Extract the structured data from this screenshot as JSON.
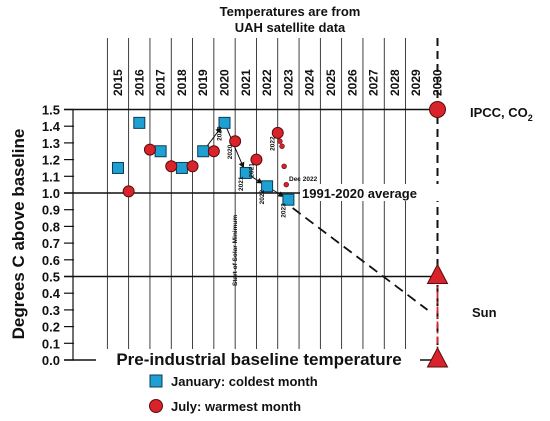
{
  "title_line1": "Temperatures are from",
  "title_line2": "UAH satellite data",
  "ylabel": "Degrees C above baseline",
  "baseline_label": "Pre-industrial baseline temperature",
  "average_label": "1991-2020 average",
  "ipcc_label": "IPCC, CO",
  "ipcc_subscript": "2",
  "sun_label": "Sun",
  "solar_min_label": "Start of Solar Minimum",
  "dec_label": "Dec 2022",
  "legend": {
    "january": "January: coldest month",
    "july": "July: warmest month"
  },
  "colors": {
    "january": "#1ea0d2",
    "july": "#d8232a",
    "sun_line": "#d8232a",
    "lines": "#111111"
  },
  "chart_data": {
    "type": "scatter",
    "x_ticks": [
      "2015",
      "2016",
      "2017",
      "2018",
      "2019",
      "2020",
      "2021",
      "2022",
      "2023",
      "2024",
      "2025",
      "2026",
      "2027",
      "2028",
      "2029",
      "2030"
    ],
    "y_ticks": [
      "0.0",
      "0.1",
      "0.2",
      "0.3",
      "0.4",
      "0.5",
      "0.6",
      "0.7",
      "0.8",
      "0.9",
      "1.0",
      "1.1",
      "1.2",
      "1.3",
      "1.4",
      "1.5"
    ],
    "ylim": [
      0,
      1.5
    ],
    "xlim": [
      2014.5,
      2030.5
    ],
    "series": [
      {
        "name": "January: coldest month",
        "marker": "square",
        "points": [
          {
            "x": 2015.0,
            "y": 1.15
          },
          {
            "x": 2016.0,
            "y": 1.42
          },
          {
            "x": 2017.0,
            "y": 1.25
          },
          {
            "x": 2018.0,
            "y": 1.15
          },
          {
            "x": 2019.0,
            "y": 1.25
          },
          {
            "x": 2020.0,
            "y": 1.42
          },
          {
            "x": 2021.0,
            "y": 1.12
          },
          {
            "x": 2022.0,
            "y": 1.04
          },
          {
            "x": 2023.0,
            "y": 0.96
          }
        ]
      },
      {
        "name": "July: warmest month",
        "marker": "circle",
        "points": [
          {
            "x": 2015.5,
            "y": 1.01
          },
          {
            "x": 2016.5,
            "y": 1.26
          },
          {
            "x": 2017.5,
            "y": 1.16
          },
          {
            "x": 2018.5,
            "y": 1.16
          },
          {
            "x": 2019.5,
            "y": 1.25
          },
          {
            "x": 2020.5,
            "y": 1.31
          },
          {
            "x": 2021.5,
            "y": 1.2
          },
          {
            "x": 2022.5,
            "y": 1.36
          }
        ]
      },
      {
        "marker": "small-circle",
        "points": [
          {
            "x": 2022.6,
            "y": 1.31
          },
          {
            "x": 2022.7,
            "y": 1.28
          },
          {
            "x": 2022.8,
            "y": 1.16
          },
          {
            "x": 2022.9,
            "y": 1.05
          }
        ]
      }
    ],
    "trend_arrows": [
      {
        "from": {
          "x": 2019.0,
          "y": 1.25
        },
        "to": {
          "x": 2020.0,
          "y": 1.42
        }
      },
      {
        "from": {
          "x": 2020.0,
          "y": 1.42
        },
        "to": {
          "x": 2021.0,
          "y": 1.12
        }
      },
      {
        "from": {
          "x": 2021.0,
          "y": 1.12
        },
        "to": {
          "x": 2022.0,
          "y": 1.04
        }
      },
      {
        "from": {
          "x": 2022.0,
          "y": 1.04
        },
        "to": {
          "x": 2023.0,
          "y": 0.96
        }
      }
    ],
    "point_labels": [
      {
        "text": "2020",
        "x": 2020.0,
        "y": 1.42
      },
      {
        "text": "2020",
        "x": 2020.5,
        "y": 1.31
      },
      {
        "text": "2021",
        "x": 2021.0,
        "y": 1.12
      },
      {
        "text": "2021",
        "x": 2021.5,
        "y": 1.2
      },
      {
        "text": "2022",
        "x": 2022.0,
        "y": 1.04
      },
      {
        "text": "2022",
        "x": 2022.5,
        "y": 1.36
      },
      {
        "text": "2023",
        "x": 2023.0,
        "y": 0.96
      }
    ],
    "projection": {
      "from": {
        "x": 2023.2,
        "y": 0.91
      },
      "to": {
        "x": 2030.0,
        "y": 0.3
      }
    },
    "reference_lines": [
      {
        "label": "1991-2020 average",
        "y": 1.0
      },
      {
        "y": 0.5
      },
      {
        "label": "Pre-industrial baseline temperature",
        "y": 0.0
      },
      {
        "label": "IPCC, CO2",
        "y": 1.5
      }
    ],
    "sun_range": {
      "x": 2030.0,
      "y_top": 0.5,
      "y_bottom": 0.0
    },
    "ipcc_marker": {
      "x": 2030.0,
      "y": 1.5
    }
  }
}
